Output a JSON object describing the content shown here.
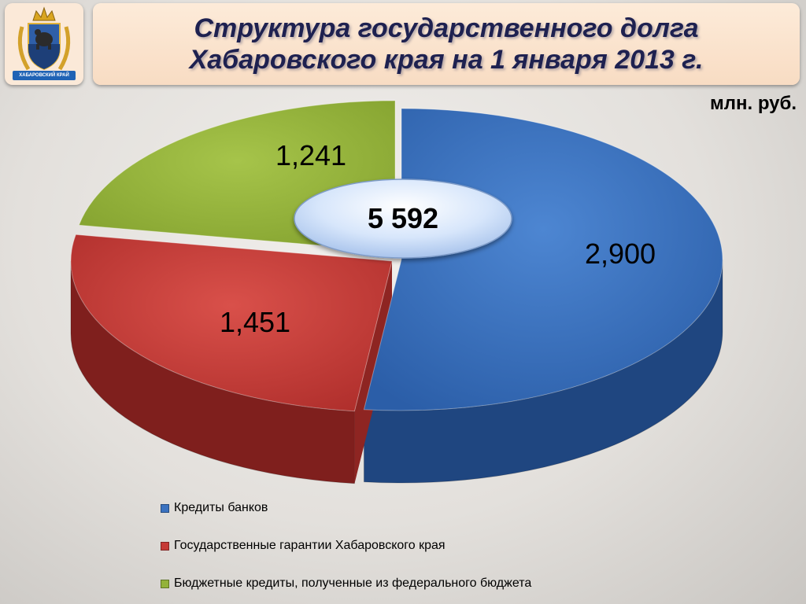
{
  "header": {
    "title_line1": "Структура государственного долга",
    "title_line2": "Хабаровского края на 1 января 2013 г.",
    "logo_text": "ХАБАРОВСКИЙ КРАЙ"
  },
  "unit_label": "млн. руб.",
  "chart_data": {
    "type": "pie",
    "style": "3d-exploded",
    "title": "Структура государственного долга Хабаровского края на 1 января 2013 г.",
    "unit": "млн. руб.",
    "total_label": "5 592",
    "slices": [
      {
        "name": "Кредиты банков",
        "value": 2900,
        "label": "2,900",
        "color": "#3a72c0"
      },
      {
        "name": "Государственные гарантии Хабаровского края",
        "value": 1451,
        "label": "1,451",
        "color": "#c63a36"
      },
      {
        "name": "Бюджетные кредиты, полученные из федерального бюджета",
        "value": 1241,
        "label": "1,241",
        "color": "#93b23a"
      }
    ],
    "legend_position": "bottom"
  }
}
